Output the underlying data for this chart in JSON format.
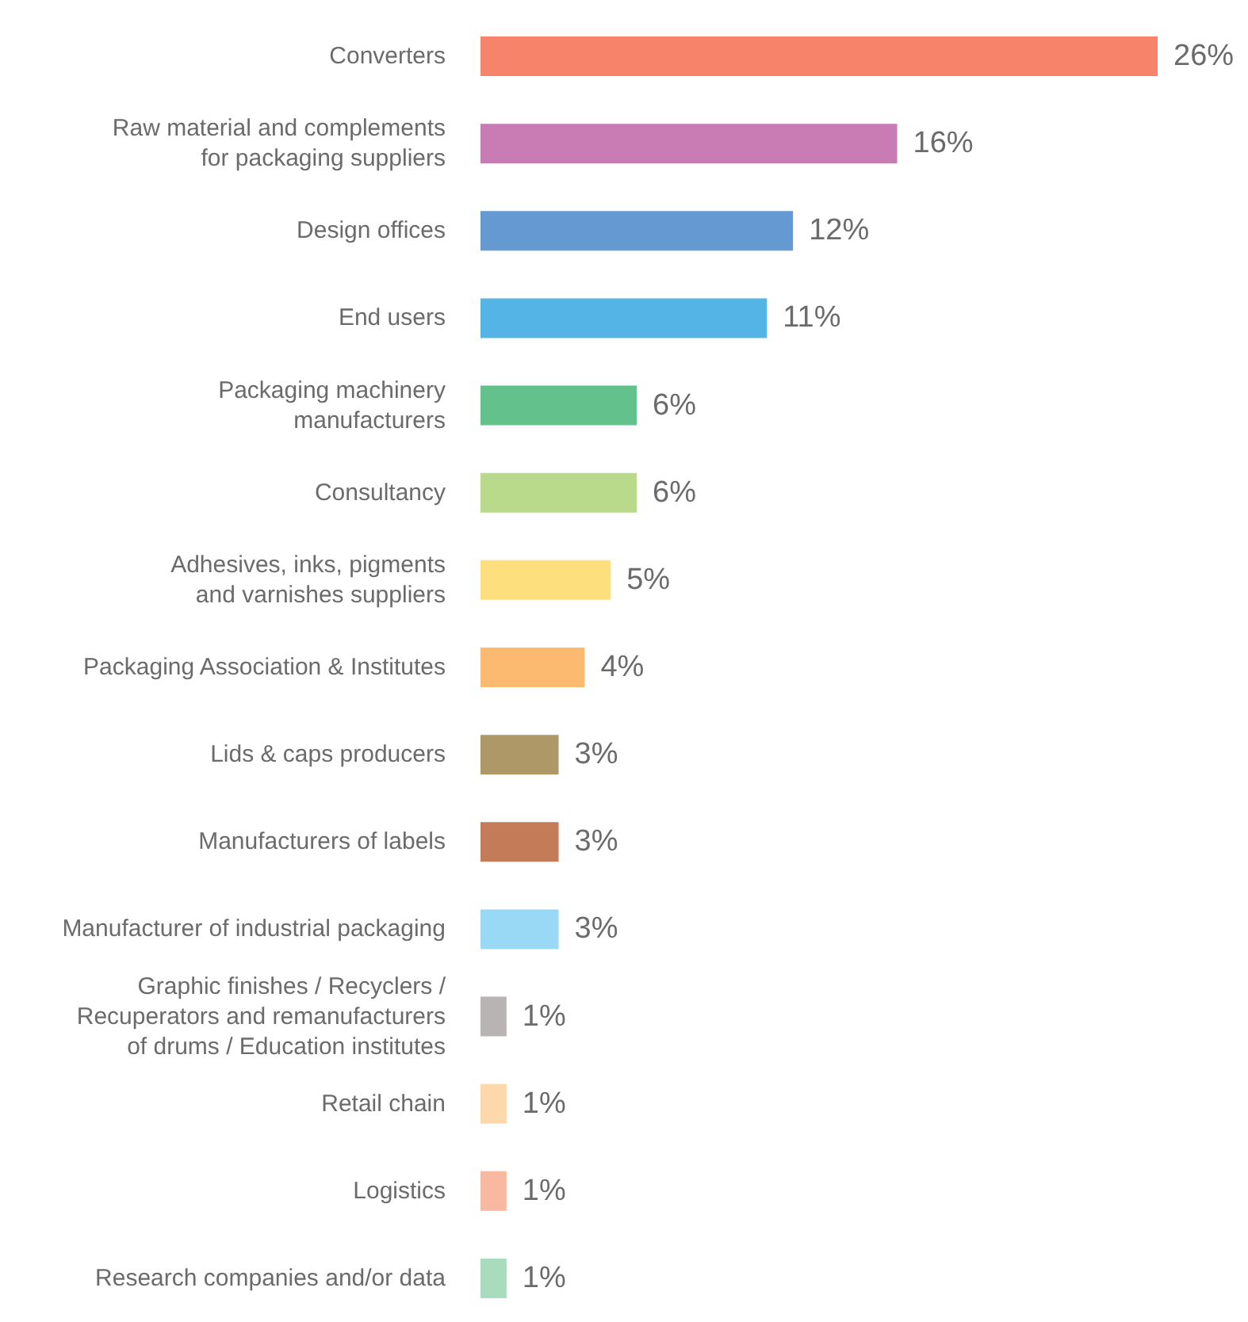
{
  "chart_data": {
    "type": "bar",
    "orientation": "horizontal",
    "categories": [
      "Converters",
      "Raw material and complements\nfor packaging suppliers",
      "Design offices",
      "End users",
      "Packaging machinery\nmanufacturers",
      "Consultancy",
      "Adhesives, inks, pigments\nand varnishes suppliers",
      "Packaging Association & Institutes",
      "Lids & caps producers",
      "Manufacturers of labels",
      "Manufacturer of industrial packaging",
      "Graphic finishes / Recyclers /\nRecuperators and remanufacturers\nof drums / Education institutes",
      "Retail chain",
      "Logistics",
      "Research companies and/or data"
    ],
    "values": [
      26,
      16,
      12,
      11,
      6,
      6,
      5,
      4,
      3,
      3,
      3,
      1,
      1,
      1,
      1
    ],
    "value_labels": [
      "26%",
      "16%",
      "12%",
      "11%",
      "6%",
      "6%",
      "5%",
      "4%",
      "3%",
      "3%",
      "3%",
      "1%",
      "1%",
      "1%",
      "1%"
    ],
    "colors": [
      "#f6836a",
      "#c97bb3",
      "#6599d2",
      "#54b4e6",
      "#63c28b",
      "#b8da8a",
      "#fddf7e",
      "#fcba70",
      "#ae9867",
      "#c47c58",
      "#9ad9f6",
      "#b8b4b4",
      "#fdd8ab",
      "#f9b9a1",
      "#a9dcbc"
    ]
  }
}
